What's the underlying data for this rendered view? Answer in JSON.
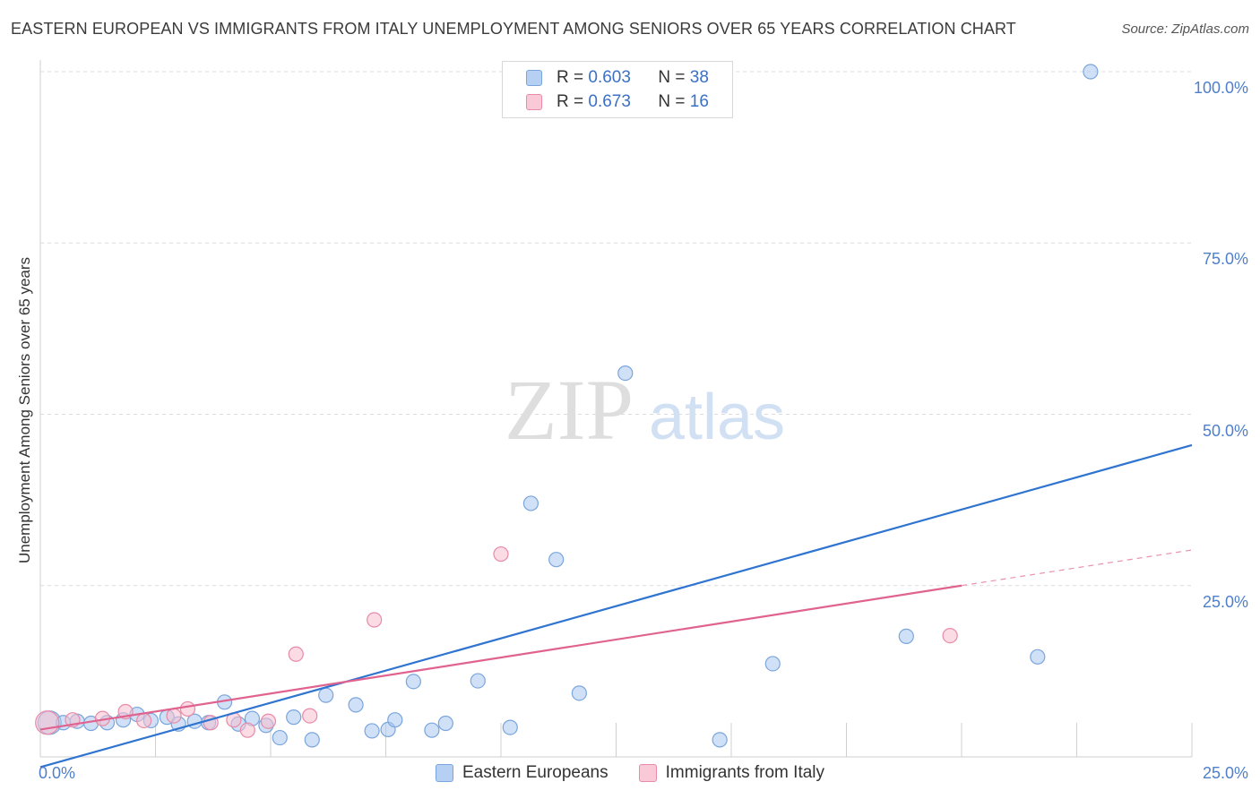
{
  "header": {
    "title": "EASTERN EUROPEAN VS IMMIGRANTS FROM ITALY UNEMPLOYMENT AMONG SENIORS OVER 65 YEARS CORRELATION CHART",
    "source": "Source: ZipAtlas.com"
  },
  "watermark": {
    "zip": "ZIP",
    "atlas": "atlas"
  },
  "legend": {
    "series1": {
      "r_label": "R =",
      "r_value": "0.603",
      "n_label": "N =",
      "n_value": "38"
    },
    "series2": {
      "r_label": "R =",
      "r_value": "0.673",
      "n_label": "N =",
      "n_value": "16"
    }
  },
  "bottom_legend": {
    "series1": "Eastern Europeans",
    "series2": "Immigrants from Italy"
  },
  "colors": {
    "blue_fill": "#a9c8f0",
    "blue_stroke": "#7aa5dc",
    "blue_line": "#2f74d0",
    "pink_fill": "#f8bfd0",
    "pink_stroke": "#e88aa8",
    "pink_line": "#e0628f",
    "grid": "#dcdcdc",
    "tick_text": "#4f7fca"
  },
  "chart_data": {
    "type": "scatter",
    "title": "EASTERN EUROPEAN VS IMMIGRANTS FROM ITALY UNEMPLOYMENT AMONG SENIORS OVER 65 YEARS CORRELATION CHART",
    "xlabel": "",
    "ylabel": "Unemployment Among Seniors over 65 years",
    "xlim": [
      0,
      25
    ],
    "ylim": [
      0,
      100
    ],
    "x_tick_labels": [
      "0.0%",
      "25.0%"
    ],
    "y_ticks": [
      25,
      50,
      75,
      100
    ],
    "y_tick_labels": [
      "25.0%",
      "50.0%",
      "75.0%",
      "100.0%"
    ],
    "grid": true,
    "legend_placement": "top-center",
    "series": [
      {
        "name": "Eastern Europeans",
        "r": 0.603,
        "n": 38,
        "points": [
          [
            0.2,
            5.0
          ],
          [
            0.5,
            5.0
          ],
          [
            0.8,
            5.2
          ],
          [
            1.1,
            4.9
          ],
          [
            1.45,
            5.0
          ],
          [
            1.8,
            5.4
          ],
          [
            2.1,
            6.2
          ],
          [
            2.4,
            5.3
          ],
          [
            2.75,
            5.8
          ],
          [
            3.0,
            4.8
          ],
          [
            3.35,
            5.2
          ],
          [
            3.65,
            5.0
          ],
          [
            4.0,
            8.0
          ],
          [
            4.3,
            4.8
          ],
          [
            4.6,
            5.6
          ],
          [
            4.9,
            4.6
          ],
          [
            5.2,
            2.8
          ],
          [
            5.5,
            5.8
          ],
          [
            5.9,
            2.5
          ],
          [
            6.2,
            9.0
          ],
          [
            6.85,
            7.6
          ],
          [
            7.2,
            3.8
          ],
          [
            7.55,
            4.0
          ],
          [
            7.7,
            5.4
          ],
          [
            8.1,
            11.0
          ],
          [
            8.5,
            3.9
          ],
          [
            8.8,
            4.9
          ],
          [
            9.5,
            11.1
          ],
          [
            10.2,
            4.3
          ],
          [
            10.65,
            37.0
          ],
          [
            11.2,
            28.8
          ],
          [
            11.7,
            9.3
          ],
          [
            12.7,
            56.0
          ],
          [
            14.75,
            2.5
          ],
          [
            15.9,
            13.6
          ],
          [
            18.8,
            17.6
          ],
          [
            21.65,
            14.6
          ],
          [
            22.8,
            100.0
          ]
        ],
        "trend_line": [
          [
            0.0,
            -1.5
          ],
          [
            25.0,
            45.5
          ]
        ]
      },
      {
        "name": "Immigrants from Italy",
        "r": 0.673,
        "n": 16,
        "points": [
          [
            0.15,
            5.0
          ],
          [
            0.7,
            5.4
          ],
          [
            1.35,
            5.6
          ],
          [
            1.85,
            6.6
          ],
          [
            2.25,
            5.3
          ],
          [
            2.9,
            6.0
          ],
          [
            3.2,
            7.0
          ],
          [
            3.7,
            5.0
          ],
          [
            4.2,
            5.4
          ],
          [
            4.5,
            3.9
          ],
          [
            4.95,
            5.2
          ],
          [
            5.55,
            15.0
          ],
          [
            5.85,
            6.0
          ],
          [
            7.25,
            20.0
          ],
          [
            10.0,
            29.6
          ],
          [
            19.75,
            17.7
          ]
        ],
        "trend_line": [
          [
            0.0,
            4.0
          ],
          [
            20.0,
            25.0
          ]
        ],
        "trend_dashed": [
          [
            20.0,
            25.0
          ],
          [
            25.0,
            30.2
          ]
        ]
      }
    ]
  }
}
